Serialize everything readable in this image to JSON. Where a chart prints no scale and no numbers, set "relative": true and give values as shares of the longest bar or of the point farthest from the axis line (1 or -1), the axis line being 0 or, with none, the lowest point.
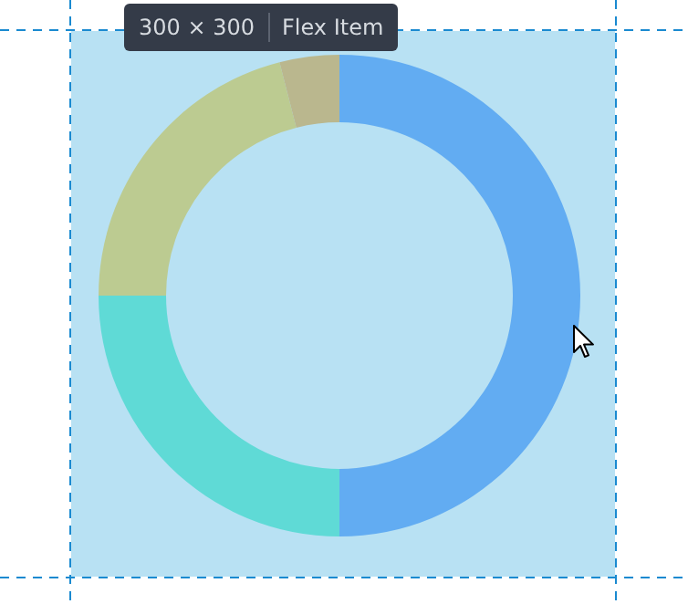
{
  "chart_data": {
    "type": "donut",
    "relative": true,
    "categories": [
      null,
      null,
      null,
      null
    ],
    "values": [
      50,
      25,
      21,
      4
    ],
    "colors": [
      "#62acf2",
      "#5fdad6",
      "#bccb91",
      "#bab78e"
    ],
    "legend": false,
    "annotations": [
      "300 × 300",
      "Flex Item"
    ]
  }
}
